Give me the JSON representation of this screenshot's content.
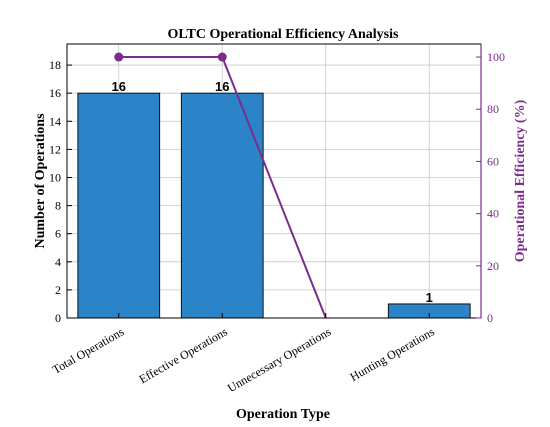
{
  "chart_data": {
    "type": "bar",
    "title": "OLTC Operational Efficiency Analysis",
    "xlabel": "Operation Type",
    "ylabel": "Number of Operations",
    "y2label": "Operational Efficiency (%)",
    "categories": [
      "Total Operations",
      "Effective Operations",
      "Unnecessary Operations",
      "Hunting Operations"
    ],
    "values": [
      16,
      16,
      0,
      1
    ],
    "data_labels": [
      "16",
      "16",
      "",
      "1"
    ],
    "ylim": [
      0,
      19.5
    ],
    "yticks": [
      "0",
      "2",
      "4",
      "6",
      "8",
      "10",
      "12",
      "14",
      "16",
      "18"
    ],
    "y2lim": [
      0,
      105
    ],
    "y2ticks": [
      "0",
      "20",
      "40",
      "60",
      "80",
      "100"
    ],
    "line": {
      "x": [
        "Total Operations",
        "Effective Operations",
        "Unnecessary Operations"
      ],
      "values": [
        100,
        100,
        0
      ]
    },
    "grid": true,
    "colors": {
      "bar": "#2b84c7",
      "bar_edge": "#111111",
      "line": "#7b2d8e",
      "grid": "#c8c8c8",
      "axis": "#000000"
    }
  }
}
